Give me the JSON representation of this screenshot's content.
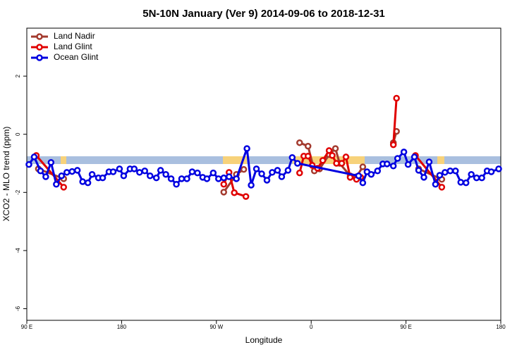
{
  "chart_data": {
    "type": "line",
    "title": "5N-10N January (Ver 9)   2014-09-06 to 2018-12-31",
    "x_label": "Longitude",
    "y_label": "XCO2 - MLO trend (ppm)",
    "xlim": [
      90,
      540
    ],
    "ylim": [
      -6.4,
      3.65
    ],
    "xticks": [
      {
        "value": 90,
        "label": "90 E"
      },
      {
        "value": 180,
        "label": "180"
      },
      {
        "value": 270,
        "label": "90 W"
      },
      {
        "value": 360,
        "label": "0"
      },
      {
        "value": 450,
        "label": "90 E"
      },
      {
        "value": 540,
        "label": "180"
      }
    ],
    "yticks": [
      -6,
      -4,
      -2,
      0,
      2
    ],
    "legend": "top-left",
    "series": [
      {
        "name": "Land Nadir",
        "color": "#a33a2e",
        "x": [
          101,
          125,
          null,
          277,
          289,
          296,
          null,
          349,
          357,
          363,
          368,
          377,
          383,
          387,
          397,
          403,
          409,
          null,
          438,
          441,
          null,
          462,
          484
        ],
        "values": [
          -1.19,
          -1.53,
          null,
          -1.99,
          -1.38,
          -1.21,
          null,
          -0.29,
          -0.41,
          -1.26,
          -1.19,
          -0.7,
          -0.49,
          -1.0,
          -1.43,
          -1.46,
          -1.12,
          null,
          -0.29,
          0.1,
          null,
          -1.19,
          -1.55
        ]
      },
      {
        "name": "Land Glint",
        "color": "#e00000",
        "x": [
          99,
          125,
          null,
          277,
          282,
          287,
          298,
          null,
          349,
          353,
          357,
          361,
          366,
          371,
          377,
          380,
          384,
          389,
          393,
          397,
          403,
          407,
          null,
          438,
          441,
          null,
          459,
          484
        ],
        "values": [
          -0.73,
          -1.82,
          null,
          -1.72,
          -1.31,
          -2.01,
          -2.14,
          null,
          -1.33,
          -0.75,
          -0.75,
          -1.07,
          -1.17,
          -0.9,
          -0.56,
          -0.73,
          -1.0,
          -1.0,
          -0.78,
          -1.48,
          -1.55,
          -1.48,
          null,
          -0.36,
          1.24,
          null,
          -0.73,
          -1.82
        ]
      },
      {
        "name": "Ocean Glint",
        "color": "#0000e0",
        "x": [
          92,
          97,
          103,
          108,
          113,
          118,
          123,
          128,
          133,
          138,
          143,
          148,
          152,
          158,
          162,
          168,
          172,
          178,
          182,
          188,
          192,
          197,
          202,
          207,
          213,
          217,
          222,
          227,
          232,
          237,
          242,
          247,
          252,
          257,
          261,
          267,
          272,
          277,
          282,
          289,
          299,
          303,
          308,
          313,
          318,
          323,
          328,
          332,
          338,
          342,
          347,
          405,
          409,
          413,
          417,
          423,
          428,
          432,
          438,
          442,
          448,
          452,
          458,
          462,
          467,
          472,
          478,
          482,
          487,
          492,
          497,
          502,
          507,
          512,
          517,
          522,
          527,
          531,
          538
        ],
        "values": [
          -1.04,
          -0.78,
          -1.26,
          -1.46,
          -0.97,
          -1.72,
          -1.43,
          -1.31,
          -1.28,
          -1.24,
          -1.63,
          -1.67,
          -1.38,
          -1.5,
          -1.5,
          -1.29,
          -1.29,
          -1.19,
          -1.43,
          -1.19,
          -1.19,
          -1.31,
          -1.26,
          -1.43,
          -1.5,
          -1.24,
          -1.38,
          -1.53,
          -1.72,
          -1.53,
          -1.53,
          -1.29,
          -1.33,
          -1.48,
          -1.53,
          -1.33,
          -1.53,
          -1.5,
          -1.46,
          -1.53,
          -0.49,
          -1.75,
          -1.19,
          -1.36,
          -1.58,
          -1.31,
          -1.24,
          -1.46,
          -1.24,
          -0.8,
          -1.0,
          -1.43,
          -1.67,
          -1.29,
          -1.38,
          -1.26,
          -1.02,
          -1.02,
          -1.09,
          -0.83,
          -0.61,
          -1.04,
          -0.78,
          -1.24,
          -1.48,
          -0.95,
          -1.72,
          -1.41,
          -1.31,
          -1.26,
          -1.26,
          -1.65,
          -1.67,
          -1.38,
          -1.5,
          -1.5,
          -1.26,
          -1.29,
          -1.19
        ]
      }
    ]
  }
}
